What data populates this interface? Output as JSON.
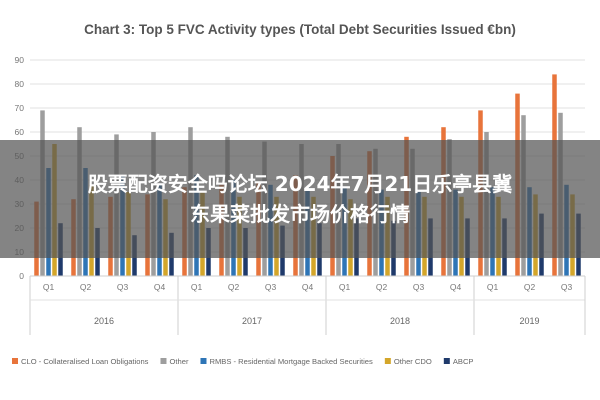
{
  "chart_data": {
    "type": "bar",
    "title": "Chart 3: Top 5 FVC Activity types (Total Debt Securities Issued €bn)",
    "ylim": [
      0,
      90
    ],
    "yticks": [
      0,
      10,
      20,
      30,
      40,
      50,
      60,
      70,
      80,
      90
    ],
    "grid": true,
    "legend_position": "bottom",
    "categories": [
      "Q1",
      "Q2",
      "Q3",
      "Q4",
      "Q1",
      "Q2",
      "Q3",
      "Q4",
      "Q1",
      "Q2",
      "Q3",
      "Q4",
      "Q1",
      "Q2",
      "Q3"
    ],
    "groups": [
      {
        "label": "2016",
        "count": 4
      },
      {
        "label": "2017",
        "count": 4
      },
      {
        "label": "2018",
        "count": 4
      },
      {
        "label": "2019",
        "count": 3
      }
    ],
    "series": [
      {
        "name": "CLO - Collateralised Loan Obligations",
        "color": "#E8743B",
        "values": [
          31,
          32,
          33,
          34,
          37,
          38,
          39,
          42,
          50,
          52,
          58,
          62,
          69,
          76,
          84
        ]
      },
      {
        "name": "Other",
        "color": "#9E9E9E",
        "values": [
          69,
          62,
          59,
          60,
          62,
          58,
          56,
          55,
          55,
          53,
          53,
          57,
          60,
          67,
          68
        ]
      },
      {
        "name": "RMBS - Residential Mortgage Backed Securities",
        "color": "#2E75B6",
        "values": [
          45,
          45,
          42,
          38,
          42,
          40,
          38,
          37,
          37,
          36,
          36,
          36,
          37,
          37,
          38
        ]
      },
      {
        "name": "Other CDO",
        "color": "#D4A62A",
        "values": [
          55,
          38,
          35,
          32,
          35,
          33,
          33,
          33,
          32,
          33,
          33,
          33,
          33,
          34,
          34
        ]
      },
      {
        "name": "ABCP",
        "color": "#1F3A6B",
        "values": [
          22,
          20,
          17,
          18,
          20,
          20,
          21,
          22,
          24,
          23,
          24,
          24,
          24,
          26,
          26
        ]
      }
    ]
  },
  "overlay": {
    "line1": "股票配资安全吗论坛 2024年7月21日乐亭县冀",
    "line2": "东果菜批发市场价格行情"
  }
}
